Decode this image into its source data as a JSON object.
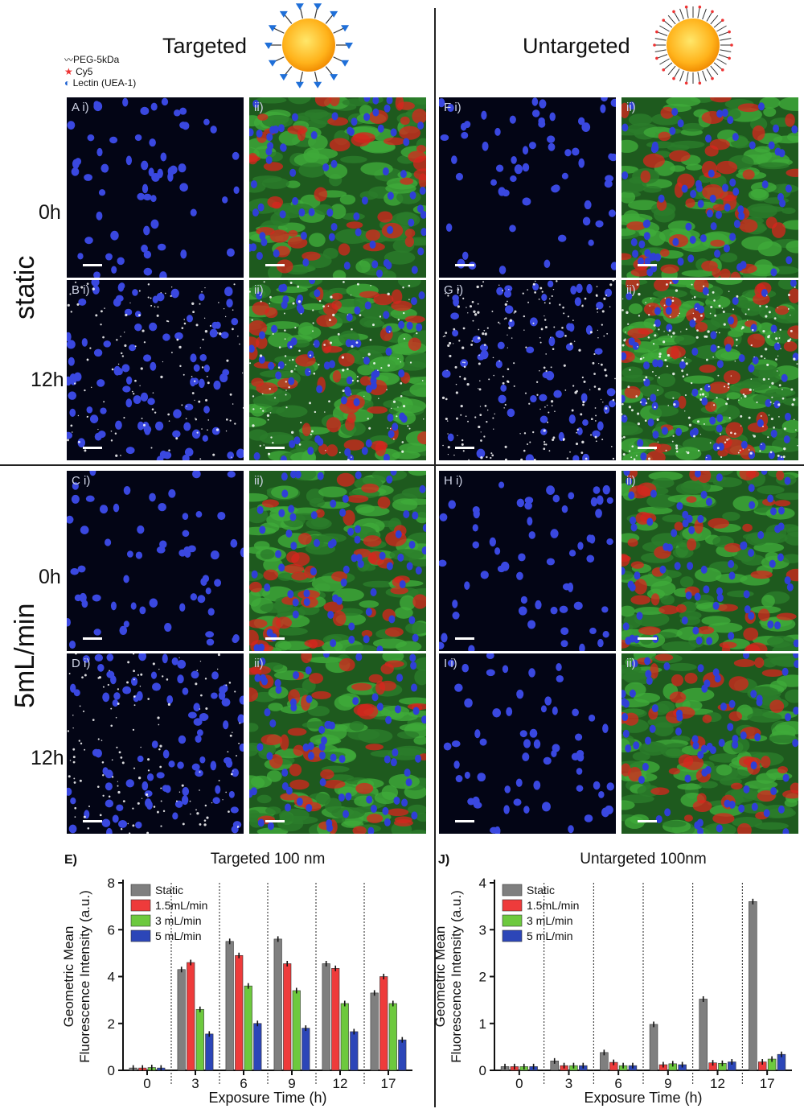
{
  "headers": {
    "targeted": "Targeted",
    "untargeted": "Untargeted"
  },
  "legend_mini": {
    "peg": "PEG-5kDa",
    "cy5": "Cy5",
    "lectin": "Lectin (UEA-1)"
  },
  "conditions": {
    "static": "static",
    "flow": "5mL/min"
  },
  "times": {
    "t0": "0h",
    "t12": "12h"
  },
  "panels": [
    {
      "key": "A1",
      "label": "A i)",
      "type": "nuc",
      "speck": 0
    },
    {
      "key": "A2",
      "label": "ii)",
      "type": "merge",
      "speck": 0
    },
    {
      "key": "F1",
      "label": "F i)",
      "type": "nuc",
      "speck": 0
    },
    {
      "key": "F2",
      "label": "ii)",
      "type": "merge",
      "speck": 0
    },
    {
      "key": "B1",
      "label": "B i)",
      "type": "nuc",
      "speck": 1
    },
    {
      "key": "B2",
      "label": "ii)",
      "type": "merge",
      "speck": 1
    },
    {
      "key": "G1",
      "label": "G i)",
      "type": "nuc",
      "speck": 2
    },
    {
      "key": "G2",
      "label": "ii)",
      "type": "merge",
      "speck": 2
    },
    {
      "key": "C1",
      "label": "C i)",
      "type": "nuc",
      "speck": 0
    },
    {
      "key": "C2",
      "label": "ii)",
      "type": "merge",
      "speck": 0
    },
    {
      "key": "H1",
      "label": "H i)",
      "type": "nuc",
      "speck": 0
    },
    {
      "key": "H2",
      "label": "ii)",
      "type": "merge",
      "speck": 0
    },
    {
      "key": "D1",
      "label": "D i)",
      "type": "nuc",
      "speck": 1
    },
    {
      "key": "D2",
      "label": "ii)",
      "type": "merge",
      "speck": 0
    },
    {
      "key": "I1",
      "label": "I i)",
      "type": "nuc",
      "speck": 0
    },
    {
      "key": "I2",
      "label": "ii)",
      "type": "merge",
      "speck": 0
    }
  ],
  "chart_data": [
    {
      "type": "bar",
      "panel_label": "E)",
      "title": "Targeted 100 nm",
      "xlabel": "Exposure Time (h)",
      "ylabel": "Geometric Mean Fluorescence Intensity (a.u.)",
      "ylabel_lines": [
        "Geometric Mean",
        "Fluorescence Intensity (a.u.)"
      ],
      "ylim": [
        0,
        8
      ],
      "yticks": [
        0,
        2,
        4,
        6,
        8
      ],
      "categories": [
        "0",
        "3",
        "6",
        "9",
        "12",
        "17"
      ],
      "legend_position": "top-left",
      "series": [
        {
          "name": "Static",
          "color": "#7f7f7f",
          "values": [
            0.1,
            4.3,
            5.5,
            5.6,
            4.55,
            3.3
          ]
        },
        {
          "name": "1.5mL/min",
          "color": "#ee3b3b",
          "values": [
            0.1,
            4.6,
            4.9,
            4.55,
            4.35,
            4.0
          ]
        },
        {
          "name": "3 mL/min",
          "color": "#6dc93e",
          "values": [
            0.12,
            2.6,
            3.6,
            3.4,
            2.85,
            2.85
          ]
        },
        {
          "name": "5 mL/min",
          "color": "#2c46b8",
          "values": [
            0.1,
            1.55,
            2.0,
            1.8,
            1.65,
            1.3
          ]
        }
      ]
    },
    {
      "type": "bar",
      "panel_label": "J)",
      "title": "Untargeted 100nm",
      "xlabel": "Exposure Time (h)",
      "ylabel": "Geometric Mean Fluorescence Intensity (a.u.)",
      "ylabel_lines": [
        "Geometric Mean",
        "Fluorescence Intensity (a.u.)"
      ],
      "ylim": [
        0,
        4
      ],
      "yticks": [
        0,
        1,
        2,
        3,
        4
      ],
      "categories": [
        "0",
        "3",
        "6",
        "9",
        "12",
        "17"
      ],
      "legend_position": "top-left",
      "series": [
        {
          "name": "Static",
          "color": "#7f7f7f",
          "values": [
            0.08,
            0.2,
            0.38,
            0.98,
            1.52,
            3.6
          ]
        },
        {
          "name": "1.5mL/min",
          "color": "#ee3b3b",
          "values": [
            0.08,
            0.1,
            0.17,
            0.12,
            0.16,
            0.18
          ]
        },
        {
          "name": "3 mL/min",
          "color": "#6dc93e",
          "values": [
            0.08,
            0.1,
            0.1,
            0.14,
            0.15,
            0.24
          ]
        },
        {
          "name": "5 mL/min",
          "color": "#2c46b8",
          "values": [
            0.08,
            0.1,
            0.1,
            0.12,
            0.18,
            0.34
          ]
        }
      ]
    }
  ]
}
